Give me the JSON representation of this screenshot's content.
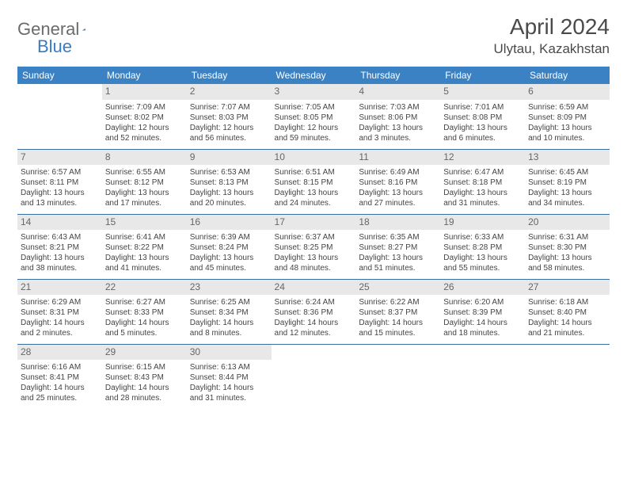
{
  "logo": {
    "text1": "General",
    "text2": "Blue"
  },
  "title": "April 2024",
  "location": "Ulytau, Kazakhstan",
  "colors": {
    "header_bg": "#3b82c4",
    "header_text": "#ffffff",
    "daynum_bg": "#e8e8e8",
    "daynum_text": "#666666",
    "cell_text": "#444444",
    "divider": "#3b6fa0",
    "logo_gray": "#6b6b6b",
    "logo_blue": "#3b7bbf"
  },
  "day_headers": [
    "Sunday",
    "Monday",
    "Tuesday",
    "Wednesday",
    "Thursday",
    "Friday",
    "Saturday"
  ],
  "weeks": [
    [
      null,
      {
        "n": "1",
        "sr": "7:09 AM",
        "ss": "8:02 PM",
        "dl": "12 hours and 52 minutes."
      },
      {
        "n": "2",
        "sr": "7:07 AM",
        "ss": "8:03 PM",
        "dl": "12 hours and 56 minutes."
      },
      {
        "n": "3",
        "sr": "7:05 AM",
        "ss": "8:05 PM",
        "dl": "12 hours and 59 minutes."
      },
      {
        "n": "4",
        "sr": "7:03 AM",
        "ss": "8:06 PM",
        "dl": "13 hours and 3 minutes."
      },
      {
        "n": "5",
        "sr": "7:01 AM",
        "ss": "8:08 PM",
        "dl": "13 hours and 6 minutes."
      },
      {
        "n": "6",
        "sr": "6:59 AM",
        "ss": "8:09 PM",
        "dl": "13 hours and 10 minutes."
      }
    ],
    [
      {
        "n": "7",
        "sr": "6:57 AM",
        "ss": "8:11 PM",
        "dl": "13 hours and 13 minutes."
      },
      {
        "n": "8",
        "sr": "6:55 AM",
        "ss": "8:12 PM",
        "dl": "13 hours and 17 minutes."
      },
      {
        "n": "9",
        "sr": "6:53 AM",
        "ss": "8:13 PM",
        "dl": "13 hours and 20 minutes."
      },
      {
        "n": "10",
        "sr": "6:51 AM",
        "ss": "8:15 PM",
        "dl": "13 hours and 24 minutes."
      },
      {
        "n": "11",
        "sr": "6:49 AM",
        "ss": "8:16 PM",
        "dl": "13 hours and 27 minutes."
      },
      {
        "n": "12",
        "sr": "6:47 AM",
        "ss": "8:18 PM",
        "dl": "13 hours and 31 minutes."
      },
      {
        "n": "13",
        "sr": "6:45 AM",
        "ss": "8:19 PM",
        "dl": "13 hours and 34 minutes."
      }
    ],
    [
      {
        "n": "14",
        "sr": "6:43 AM",
        "ss": "8:21 PM",
        "dl": "13 hours and 38 minutes."
      },
      {
        "n": "15",
        "sr": "6:41 AM",
        "ss": "8:22 PM",
        "dl": "13 hours and 41 minutes."
      },
      {
        "n": "16",
        "sr": "6:39 AM",
        "ss": "8:24 PM",
        "dl": "13 hours and 45 minutes."
      },
      {
        "n": "17",
        "sr": "6:37 AM",
        "ss": "8:25 PM",
        "dl": "13 hours and 48 minutes."
      },
      {
        "n": "18",
        "sr": "6:35 AM",
        "ss": "8:27 PM",
        "dl": "13 hours and 51 minutes."
      },
      {
        "n": "19",
        "sr": "6:33 AM",
        "ss": "8:28 PM",
        "dl": "13 hours and 55 minutes."
      },
      {
        "n": "20",
        "sr": "6:31 AM",
        "ss": "8:30 PM",
        "dl": "13 hours and 58 minutes."
      }
    ],
    [
      {
        "n": "21",
        "sr": "6:29 AM",
        "ss": "8:31 PM",
        "dl": "14 hours and 2 minutes."
      },
      {
        "n": "22",
        "sr": "6:27 AM",
        "ss": "8:33 PM",
        "dl": "14 hours and 5 minutes."
      },
      {
        "n": "23",
        "sr": "6:25 AM",
        "ss": "8:34 PM",
        "dl": "14 hours and 8 minutes."
      },
      {
        "n": "24",
        "sr": "6:24 AM",
        "ss": "8:36 PM",
        "dl": "14 hours and 12 minutes."
      },
      {
        "n": "25",
        "sr": "6:22 AM",
        "ss": "8:37 PM",
        "dl": "14 hours and 15 minutes."
      },
      {
        "n": "26",
        "sr": "6:20 AM",
        "ss": "8:39 PM",
        "dl": "14 hours and 18 minutes."
      },
      {
        "n": "27",
        "sr": "6:18 AM",
        "ss": "8:40 PM",
        "dl": "14 hours and 21 minutes."
      }
    ],
    [
      {
        "n": "28",
        "sr": "6:16 AM",
        "ss": "8:41 PM",
        "dl": "14 hours and 25 minutes."
      },
      {
        "n": "29",
        "sr": "6:15 AM",
        "ss": "8:43 PM",
        "dl": "14 hours and 28 minutes."
      },
      {
        "n": "30",
        "sr": "6:13 AM",
        "ss": "8:44 PM",
        "dl": "14 hours and 31 minutes."
      },
      null,
      null,
      null,
      null
    ]
  ],
  "labels": {
    "sunrise": "Sunrise:",
    "sunset": "Sunset:",
    "daylight": "Daylight:"
  }
}
